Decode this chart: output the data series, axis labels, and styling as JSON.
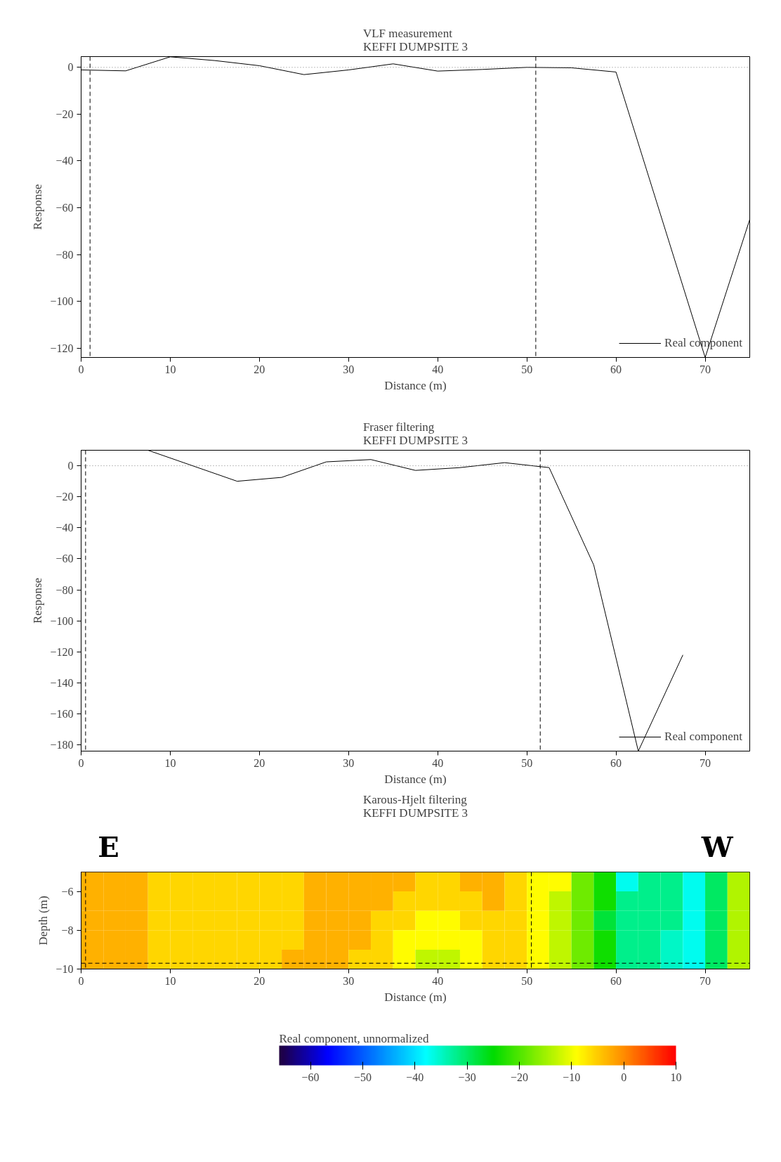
{
  "chart_data": [
    {
      "type": "line",
      "title": "VLF measurement\nKEFFI DUMPSITE 3",
      "xlabel": "Distance (m)",
      "ylabel": "Response",
      "series": [
        {
          "name": "Real component",
          "color": "#000000",
          "x": [
            0,
            5,
            10,
            15,
            20,
            25,
            30,
            35,
            40,
            45,
            50,
            55,
            60,
            70,
            75
          ],
          "values": [
            -1.1,
            -1.5,
            4.5,
            2.9,
            0.7,
            -3.1,
            -1.1,
            1.5,
            -1.6,
            -0.9,
            0,
            -0.2,
            -2,
            -124,
            -65
          ]
        }
      ],
      "xlim": [
        0,
        75
      ],
      "ylim": [
        -124,
        4.6
      ],
      "xticks": [
        0,
        10,
        20,
        30,
        40,
        50,
        60,
        70
      ],
      "yticks": [
        -120,
        -100,
        -80,
        -60,
        -40,
        -20,
        0
      ],
      "ref_lines": [
        {
          "axis": "y",
          "value": 0,
          "color": "#808080",
          "line_style": "dotted"
        },
        {
          "axis": "x",
          "value": 1,
          "color": "#000000",
          "line_style": "dashed"
        },
        {
          "axis": "x",
          "value": 51,
          "color": "#000000",
          "line_style": "dashed"
        }
      ],
      "legend": "bottom right",
      "grid": false,
      "line_style": "solid"
    },
    {
      "type": "line",
      "title": "Fraser filtering\nKEFFI DUMPSITE 3",
      "xlabel": "Distance (m)",
      "ylabel": "Response",
      "series": [
        {
          "name": "Real component",
          "color": "#000000",
          "x": [
            7.5,
            17.5,
            22.5,
            27.5,
            32.5,
            37.5,
            42.5,
            47.5,
            52.5,
            57.5,
            62.5,
            67.5
          ],
          "values": [
            10,
            -10,
            -7.5,
            2.5,
            4,
            -3,
            -1.2,
            2,
            -1.2,
            -64,
            -184,
            -122
          ]
        }
      ],
      "xlim": [
        0,
        75
      ],
      "ylim": [
        -184,
        10
      ],
      "xticks": [
        0,
        10,
        20,
        30,
        40,
        50,
        60,
        70
      ],
      "yticks": [
        -180,
        -160,
        -140,
        -120,
        -100,
        -80,
        -60,
        -40,
        -20,
        0
      ],
      "ref_lines": [
        {
          "axis": "y",
          "value": 0,
          "color": "#808080",
          "line_style": "dotted"
        },
        {
          "axis": "x",
          "value": 0.5,
          "color": "#000000",
          "line_style": "dashed"
        },
        {
          "axis": "x",
          "value": 51.5,
          "color": "#000000",
          "line_style": "dashed"
        }
      ],
      "legend": "bottom right",
      "grid": false,
      "line_style": "solid"
    },
    {
      "type": "heatmap",
      "title": "Karous-Hjelt filtering\nKEFFI DUMPSITE 3",
      "xlabel": "Distance (m)",
      "ylabel": "Depth (m)",
      "clabel": "Real component, unnormalized",
      "annotations": [
        "E",
        "W"
      ],
      "x": [
        1.25,
        3.75,
        6.25,
        8.75,
        11.25,
        13.75,
        16.25,
        18.75,
        21.25,
        23.75,
        26.25,
        28.75,
        31.25,
        33.75,
        36.25,
        38.75,
        41.25,
        43.75,
        46.25,
        48.75,
        51.25,
        53.75,
        56.25,
        58.75,
        61.25,
        63.75,
        66.25,
        68.75,
        71.25,
        73.75
      ],
      "cells": [
        [
          -3,
          -3,
          -3,
          -6,
          -6,
          -6,
          -6,
          -6,
          -6,
          -6,
          -3,
          -3,
          -3,
          -3,
          -3,
          -6,
          -6,
          -3,
          -3,
          -6,
          -9,
          -9,
          -18,
          -24,
          -37,
          -32,
          -32,
          -37,
          -30,
          -14
        ],
        [
          -3,
          -3,
          -3,
          -6,
          -6,
          -6,
          -6,
          -6,
          -6,
          -6,
          -3,
          -3,
          -3,
          -3,
          -6,
          -6,
          -6,
          -6,
          -3,
          -6,
          -9,
          -13,
          -18,
          -24,
          -32,
          -32,
          -32,
          -37,
          -30,
          -14
        ],
        [
          -3,
          -3,
          -3,
          -6,
          -6,
          -6,
          -6,
          -6,
          -6,
          -6,
          -3,
          -3,
          -3,
          -6,
          -6,
          -9,
          -9,
          -6,
          -6,
          -6,
          -9,
          -13,
          -18,
          -28,
          -32,
          -32,
          -32,
          -37,
          -30,
          -14
        ],
        [
          -3,
          -3,
          -3,
          -6,
          -6,
          -6,
          -6,
          -6,
          -6,
          -6,
          -3,
          -3,
          -3,
          -6,
          -9,
          -9,
          -9,
          -9,
          -6,
          -6,
          -9,
          -13,
          -18,
          -24,
          -32,
          -32,
          -35,
          -37,
          -30,
          -14
        ],
        [
          -3,
          -3,
          -3,
          -6,
          -6,
          -6,
          -6,
          -6,
          -6,
          -3,
          -3,
          -3,
          -6,
          -6,
          -9,
          -13,
          -13,
          -9,
          -6,
          -6,
          -9,
          -13,
          -18,
          -24,
          -32,
          -32,
          -35,
          -37,
          -30,
          -14
        ]
      ],
      "xlim": [
        0,
        75
      ],
      "ylim": [
        -10,
        -5
      ],
      "xticks": [
        0,
        10,
        20,
        30,
        40,
        50,
        60,
        70
      ],
      "yticks": [
        -10,
        -8,
        -6
      ],
      "clim": [
        -66,
        10
      ],
      "cticks": [
        -60,
        -50,
        -40,
        -30,
        -20,
        -10,
        0,
        10
      ],
      "ref_lines": [
        {
          "axis": "x",
          "value": 0.5,
          "color": "#000000",
          "line_style": "dashed"
        },
        {
          "axis": "x",
          "value": 50.5,
          "color": "#000000",
          "line_style": "dashed"
        },
        {
          "axis": "y",
          "value": -9.7,
          "color": "#000000",
          "line_style": "dashed"
        }
      ],
      "grid": false
    }
  ]
}
